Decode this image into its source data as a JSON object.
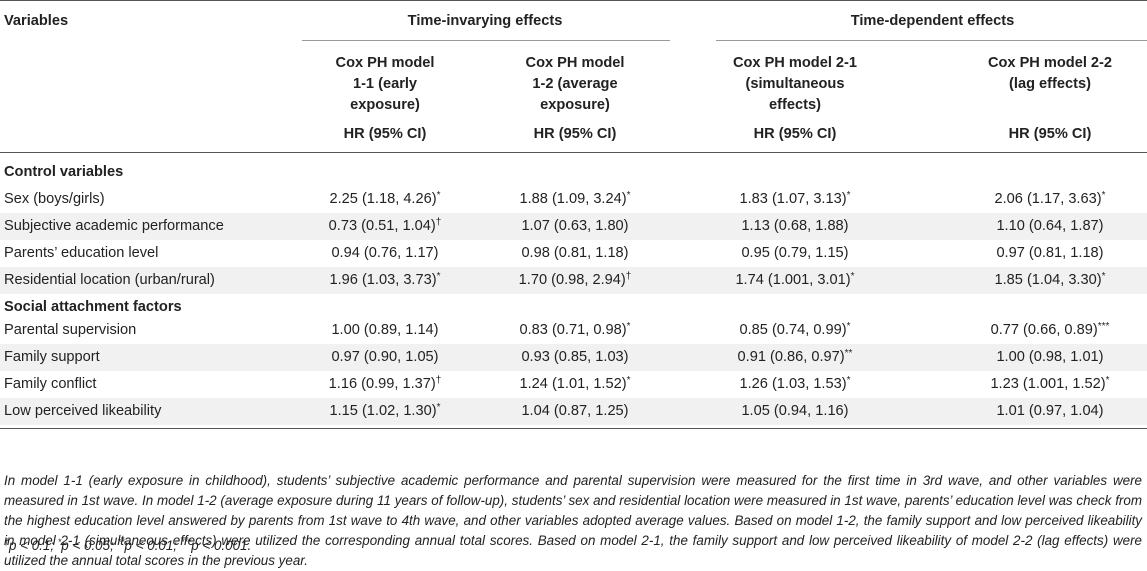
{
  "header": {
    "variables_label": "Variables",
    "group_invarying": "Time-invarying effects",
    "group_dependent": "Time-dependent effects",
    "models": [
      {
        "l1": "Cox PH model",
        "l2": "1-1 (early",
        "l3": "exposure)",
        "hr": "HR (95% CI)"
      },
      {
        "l1": "Cox PH model",
        "l2": "1-2 (average",
        "l3": "exposure)",
        "hr": "HR (95% CI)"
      },
      {
        "l1": "Cox PH model 2-1",
        "l2": "(simultaneous",
        "l3": "effects)",
        "hr": "HR (95% CI)"
      },
      {
        "l1": "Cox PH model 2-2",
        "l2": "(lag effects)",
        "l3": "",
        "hr": "HR (95% CI)"
      }
    ]
  },
  "sections": [
    {
      "title": "Control variables",
      "rows": [
        {
          "label": "Sex (boys/girls)",
          "values": [
            {
              "v": "2.25 (1.18, 4.26)",
              "s": "*"
            },
            {
              "v": "1.88 (1.09, 3.24)",
              "s": "*"
            },
            {
              "v": "1.83 (1.07, 3.13)",
              "s": "*"
            },
            {
              "v": "2.06 (1.17, 3.63)",
              "s": "*"
            }
          ]
        },
        {
          "label": "Subjective academic performance",
          "values": [
            {
              "v": "0.73 (0.51, 1.04)",
              "s": "†"
            },
            {
              "v": "1.07 (0.63, 1.80)",
              "s": ""
            },
            {
              "v": "1.13 (0.68, 1.88)",
              "s": ""
            },
            {
              "v": "1.10 (0.64, 1.87)",
              "s": ""
            }
          ]
        },
        {
          "label": "Parents’ education level",
          "values": [
            {
              "v": "0.94 (0.76, 1.17)",
              "s": ""
            },
            {
              "v": "0.98 (0.81, 1.18)",
              "s": ""
            },
            {
              "v": "0.95 (0.79, 1.15)",
              "s": ""
            },
            {
              "v": "0.97 (0.81, 1.18)",
              "s": ""
            }
          ]
        },
        {
          "label": "Residential location (urban/rural)",
          "values": [
            {
              "v": "1.96 (1.03, 3.73)",
              "s": "*"
            },
            {
              "v": "1.70 (0.98, 2.94)",
              "s": "†"
            },
            {
              "v": "1.74 (1.001, 3.01)",
              "s": "*"
            },
            {
              "v": "1.85 (1.04, 3.30)",
              "s": "*"
            }
          ]
        }
      ]
    },
    {
      "title": "Social attachment factors",
      "rows": [
        {
          "label": "Parental supervision",
          "values": [
            {
              "v": "1.00 (0.89, 1.14)",
              "s": ""
            },
            {
              "v": "0.83 (0.71, 0.98)",
              "s": "*"
            },
            {
              "v": "0.85 (0.74, 0.99)",
              "s": "*"
            },
            {
              "v": "0.77 (0.66, 0.89)",
              "s": "***"
            }
          ]
        },
        {
          "label": "Family support",
          "values": [
            {
              "v": "0.97 (0.90, 1.05)",
              "s": ""
            },
            {
              "v": "0.93 (0.85, 1.03)",
              "s": ""
            },
            {
              "v": "0.91 (0.86, 0.97)",
              "s": "**"
            },
            {
              "v": "1.00 (0.98, 1.01)",
              "s": ""
            }
          ]
        },
        {
          "label": "Family conflict",
          "values": [
            {
              "v": "1.16 (0.99, 1.37)",
              "s": "†"
            },
            {
              "v": "1.24 (1.01, 1.52)",
              "s": "*"
            },
            {
              "v": "1.26 (1.03, 1.53)",
              "s": "*"
            },
            {
              "v": "1.23 (1.001, 1.52)",
              "s": "*"
            }
          ]
        },
        {
          "label": "Low perceived likeability",
          "values": [
            {
              "v": "1.15 (1.02, 1.30)",
              "s": "*"
            },
            {
              "v": "1.04 (0.87, 1.25)",
              "s": ""
            },
            {
              "v": "1.05 (0.94, 1.16)",
              "s": ""
            },
            {
              "v": "1.01 (0.97, 1.04)",
              "s": ""
            }
          ]
        }
      ]
    }
  ],
  "note": "In model 1-1 (early exposure in childhood), students’ subjective academic performance and parental supervision were measured for the first time in 3rd wave, and other variables were measured in 1st wave. In model 1-2 (average exposure during 11 years of follow-up), students’ sex and residential location were measured in 1st wave, parents’ education level was check from the highest education level answered by parents from 1st wave to 4th wave, and other variables adopted average values. Based on model 1-2, the family support and low perceived likeability in model 2-1 (simultaneous effects) were utilized the corresponding annual total scores. Based on model 2-1, the family support and low perceived likeability of model 2-2 (lag effects) were utilized the annual total scores in the previous year.",
  "footnote": {
    "dagger": "†",
    "dagger_text": "p < 0.1; ",
    "s1": "*",
    "s1_text": "p < 0.05; ",
    "s2": "**",
    "s2_text": "p < 0.01; ",
    "s3": "***",
    "s3_text": "p < 0.001."
  }
}
